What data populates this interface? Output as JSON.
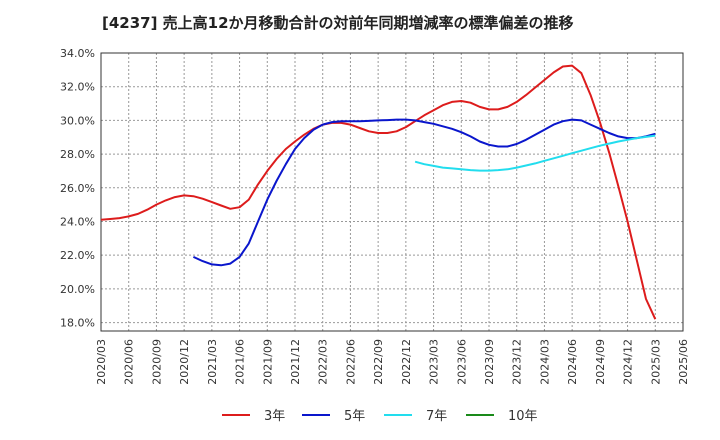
{
  "chart_data": {
    "type": "line",
    "title": "[4237]  売上高12か月移動合計の対前年同期増減率の標準偏差の推移",
    "xlabel": "",
    "ylabel": "",
    "ylim": [
      17.5,
      34.0
    ],
    "y_ticks": [
      18.0,
      20.0,
      22.0,
      24.0,
      26.0,
      28.0,
      30.0,
      32.0,
      34.0
    ],
    "y_tick_labels": [
      "18.0%",
      "20.0%",
      "22.0%",
      "24.0%",
      "26.0%",
      "28.0%",
      "30.0%",
      "32.0%",
      "34.0%"
    ],
    "x_tick_labels": [
      "2020/03",
      "2020/06",
      "2020/09",
      "2020/12",
      "2021/03",
      "2021/06",
      "2021/09",
      "2021/12",
      "2022/03",
      "2022/06",
      "2022/09",
      "2022/12",
      "2023/03",
      "2023/06",
      "2023/09",
      "2023/12",
      "2024/03",
      "2024/06",
      "2024/09",
      "2024/12",
      "2025/03",
      "2025/06"
    ],
    "grid": true,
    "legend_position": "bottom",
    "series": [
      {
        "name": "3年",
        "color": "#dd1c1c",
        "x": [
          "2020/03",
          "2020/04",
          "2020/05",
          "2020/06",
          "2020/07",
          "2020/08",
          "2020/09",
          "2020/10",
          "2020/11",
          "2020/12",
          "2021/01",
          "2021/02",
          "2021/03",
          "2021/04",
          "2021/05",
          "2021/06",
          "2021/07",
          "2021/08",
          "2021/09",
          "2021/10",
          "2021/11",
          "2021/12",
          "2022/01",
          "2022/02",
          "2022/03",
          "2022/04",
          "2022/05",
          "2022/06",
          "2022/07",
          "2022/08",
          "2022/09",
          "2022/10",
          "2022/11",
          "2022/12",
          "2023/01",
          "2023/02",
          "2023/03",
          "2023/04",
          "2023/05",
          "2023/06",
          "2023/07",
          "2023/08",
          "2023/09",
          "2023/10",
          "2023/11",
          "2023/12",
          "2024/01",
          "2024/02",
          "2024/03",
          "2024/04",
          "2024/05",
          "2024/06",
          "2024/07",
          "2024/08",
          "2024/09",
          "2024/10",
          "2024/11",
          "2024/12",
          "2025/01",
          "2025/02",
          "2025/03"
        ],
        "values": [
          24.1,
          24.15,
          24.2,
          24.3,
          24.45,
          24.7,
          25.0,
          25.25,
          25.45,
          25.55,
          25.5,
          25.35,
          25.15,
          24.95,
          24.75,
          24.85,
          25.3,
          26.2,
          27.0,
          27.7,
          28.3,
          28.75,
          29.15,
          29.5,
          29.75,
          29.85,
          29.85,
          29.75,
          29.55,
          29.35,
          29.25,
          29.25,
          29.35,
          29.6,
          29.95,
          30.3,
          30.6,
          30.9,
          31.1,
          31.15,
          31.05,
          30.8,
          30.65,
          30.65,
          30.8,
          31.1,
          31.5,
          31.95,
          32.4,
          32.85,
          33.2,
          33.25,
          32.8,
          31.5,
          29.9,
          28.1,
          26.1,
          24.0,
          21.7,
          19.4,
          18.2
        ]
      },
      {
        "name": "5年",
        "color": "#0a16cc",
        "x": [
          "2021/01",
          "2021/02",
          "2021/03",
          "2021/04",
          "2021/05",
          "2021/06",
          "2021/07",
          "2021/08",
          "2021/09",
          "2021/10",
          "2021/11",
          "2021/12",
          "2022/01",
          "2022/02",
          "2022/03",
          "2022/04",
          "2022/05",
          "2022/06",
          "2022/07",
          "2022/08",
          "2022/09",
          "2022/10",
          "2022/11",
          "2022/12",
          "2023/01",
          "2023/02",
          "2023/03",
          "2023/04",
          "2023/05",
          "2023/06",
          "2023/07",
          "2023/08",
          "2023/09",
          "2023/10",
          "2023/11",
          "2023/12",
          "2024/01",
          "2024/02",
          "2024/03",
          "2024/04",
          "2024/05",
          "2024/06",
          "2024/07",
          "2024/08",
          "2024/09",
          "2024/10",
          "2024/11",
          "2024/12",
          "2025/01",
          "2025/02",
          "2025/03"
        ],
        "values": [
          21.9,
          21.65,
          21.45,
          21.4,
          21.5,
          21.9,
          22.7,
          24.0,
          25.3,
          26.4,
          27.4,
          28.3,
          28.95,
          29.45,
          29.75,
          29.9,
          29.95,
          29.95,
          29.95,
          29.97,
          30.0,
          30.02,
          30.05,
          30.05,
          30.0,
          29.9,
          29.8,
          29.65,
          29.5,
          29.3,
          29.05,
          28.75,
          28.55,
          28.45,
          28.45,
          28.6,
          28.85,
          29.15,
          29.45,
          29.75,
          29.95,
          30.05,
          30.0,
          29.75,
          29.5,
          29.25,
          29.05,
          28.95,
          28.95,
          29.05,
          29.2
        ]
      },
      {
        "name": "7年",
        "color": "#22ddee",
        "x": [
          "2023/01",
          "2023/02",
          "2023/03",
          "2023/04",
          "2023/05",
          "2023/06",
          "2023/07",
          "2023/08",
          "2023/09",
          "2023/10",
          "2023/11",
          "2023/12",
          "2024/01",
          "2024/02",
          "2024/03",
          "2024/04",
          "2024/05",
          "2024/06",
          "2024/07",
          "2024/08",
          "2024/09",
          "2024/10",
          "2024/11",
          "2024/12",
          "2025/01",
          "2025/02",
          "2025/03"
        ],
        "values": [
          27.55,
          27.4,
          27.3,
          27.2,
          27.15,
          27.1,
          27.05,
          27.02,
          27.02,
          27.05,
          27.1,
          27.2,
          27.32,
          27.45,
          27.6,
          27.75,
          27.9,
          28.05,
          28.2,
          28.35,
          28.5,
          28.62,
          28.75,
          28.85,
          28.95,
          29.02,
          29.1
        ]
      },
      {
        "name": "10年",
        "color": "#1a8a1a",
        "x": [],
        "values": []
      }
    ]
  }
}
